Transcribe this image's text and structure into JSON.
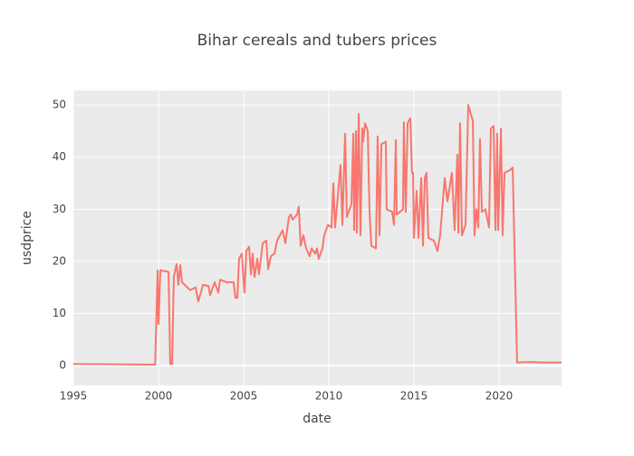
{
  "chart_data": {
    "type": "line",
    "title": "Bihar cereals and tubers prices",
    "x_label": "date",
    "y_label": "usdprice",
    "color": "#f8766d",
    "grid": true,
    "xlim": [
      1995,
      2023.67
    ],
    "xticks": [
      1995,
      2000,
      2005,
      2010,
      2015,
      2020
    ],
    "ylim": [
      -3.8,
      52.8
    ],
    "yticks": [
      0,
      10,
      20,
      30,
      40,
      50
    ],
    "x": [
      1995,
      1999.8,
      1999.95,
      2000.0,
      2000.11,
      2000.59,
      2000.69,
      2000.8,
      2000.9,
      2001.06,
      2001.17,
      2001.28,
      2001.38,
      2001.86,
      2002.18,
      2002.34,
      2002.61,
      2002.93,
      2003.03,
      2003.3,
      2003.51,
      2003.62,
      2003.99,
      2004.41,
      2004.52,
      2004.63,
      2004.73,
      2004.89,
      2005.05,
      2005.16,
      2005.32,
      2005.43,
      2005.53,
      2005.64,
      2005.8,
      2005.9,
      2006.12,
      2006.33,
      2006.44,
      2006.6,
      2006.81,
      2006.97,
      2007.29,
      2007.45,
      2007.66,
      2007.77,
      2007.87,
      2008.14,
      2008.24,
      2008.35,
      2008.51,
      2008.67,
      2008.88,
      2008.99,
      2009.2,
      2009.31,
      2009.41,
      2009.63,
      2009.73,
      2009.95,
      2010.16,
      2010.27,
      2010.37,
      2010.69,
      2010.8,
      2010.96,
      2011.06,
      2011.33,
      2011.44,
      2011.49,
      2011.6,
      2011.65,
      2011.76,
      2011.86,
      2011.97,
      2012.02,
      2012.13,
      2012.29,
      2012.39,
      2012.5,
      2012.77,
      2012.87,
      2012.98,
      2013.09,
      2013.35,
      2013.4,
      2013.72,
      2013.83,
      2013.94,
      2013.99,
      2014.36,
      2014.41,
      2014.52,
      2014.63,
      2014.79,
      2014.89,
      2014.95,
      2015.0,
      2015.16,
      2015.27,
      2015.43,
      2015.53,
      2015.64,
      2015.74,
      2015.85,
      2016.17,
      2016.38,
      2016.54,
      2016.81,
      2016.97,
      2017.23,
      2017.39,
      2017.55,
      2017.61,
      2017.71,
      2017.82,
      2018.03,
      2018.19,
      2018.46,
      2018.56,
      2018.67,
      2018.78,
      2018.88,
      2018.99,
      2019.2,
      2019.41,
      2019.52,
      2019.68,
      2019.79,
      2019.89,
      2019.95,
      2020.11,
      2020.21,
      2020.32,
      2020.64,
      2020.8,
      2021.06,
      2021.8,
      2022.6,
      2023.67
    ],
    "values": [
      0.3,
      0.2,
      18.3,
      8,
      18.3,
      18,
      0.3,
      0.3,
      17,
      19.5,
      15.5,
      19.3,
      16,
      14.5,
      15,
      12.3,
      15.5,
      15.3,
      13.5,
      16,
      14,
      16.5,
      16,
      16,
      13,
      13,
      20.5,
      21.5,
      14,
      22,
      22.8,
      17.5,
      21.5,
      17,
      20.5,
      17.5,
      23.5,
      24,
      18.5,
      21,
      21.5,
      24,
      26,
      23.5,
      28.5,
      29,
      28,
      29,
      30.5,
      23,
      25,
      22.5,
      21,
      22.5,
      21.5,
      22.5,
      20.5,
      22.5,
      25,
      27,
      26.5,
      35,
      26.5,
      38.5,
      27,
      44.5,
      28.5,
      31,
      44.5,
      26,
      45,
      25.5,
      48.3,
      25,
      45.5,
      43,
      46.5,
      45,
      30,
      23,
      22.5,
      44,
      25,
      42.5,
      43,
      30,
      29.5,
      27,
      43.3,
      29,
      30,
      46.7,
      29.5,
      46.5,
      47.5,
      37,
      37,
      24.5,
      33.5,
      24.5,
      36,
      23,
      36,
      37,
      24.5,
      24,
      22,
      25,
      36,
      31.5,
      37,
      26,
      40.5,
      25.5,
      46.5,
      25,
      27,
      50,
      47,
      25,
      30,
      26.5,
      43.5,
      29.5,
      30,
      26.5,
      45.5,
      46,
      26,
      44.5,
      26,
      45.5,
      25,
      37,
      37.5,
      38,
      0.6,
      0.7,
      0.6,
      0.6
    ]
  }
}
